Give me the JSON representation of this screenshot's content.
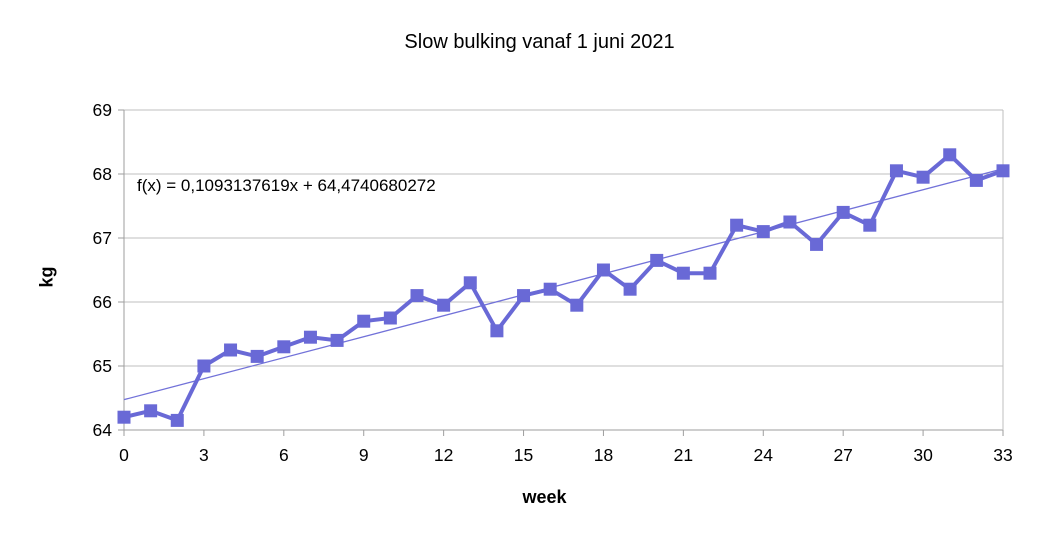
{
  "page": {
    "background": "#ffffff"
  },
  "chart_data": {
    "type": "line",
    "title": "Slow bulking vanaf 1 juni 2021",
    "xlabel": "week",
    "ylabel": "kg",
    "annotation": "f(x) = 0,1093137619x + 64,4740680272",
    "legend": "none",
    "grid": "horizontal",
    "x": [
      0,
      1,
      2,
      3,
      4,
      5,
      6,
      7,
      8,
      9,
      10,
      11,
      12,
      13,
      14,
      15,
      16,
      17,
      18,
      19,
      20,
      21,
      22,
      23,
      24,
      25,
      26,
      27,
      28,
      29,
      30,
      31,
      32,
      33
    ],
    "values": [
      64.2,
      64.3,
      64.15,
      65.0,
      65.25,
      65.15,
      65.3,
      65.45,
      65.4,
      65.7,
      65.75,
      66.1,
      65.95,
      66.3,
      65.55,
      66.1,
      66.2,
      65.95,
      66.5,
      66.2,
      66.65,
      66.45,
      66.45,
      67.2,
      67.1,
      67.25,
      66.9,
      67.4,
      67.2,
      68.05,
      67.95,
      68.3,
      67.9,
      68.05
    ],
    "xlim": [
      0,
      33
    ],
    "ylim": [
      64,
      69
    ],
    "xticks": [
      0,
      3,
      6,
      9,
      12,
      15,
      18,
      21,
      24,
      27,
      30,
      33
    ],
    "yticks": [
      64,
      65,
      66,
      67,
      68,
      69
    ],
    "trend": {
      "slope": 0.1093137619,
      "intercept": 64.4740680272
    },
    "marker": "square",
    "colors": {
      "series": "#6969d6",
      "trend": "#7272d9",
      "grid": "#bfbfbf",
      "axis": "#9e9e9e",
      "text": "#000000"
    }
  }
}
